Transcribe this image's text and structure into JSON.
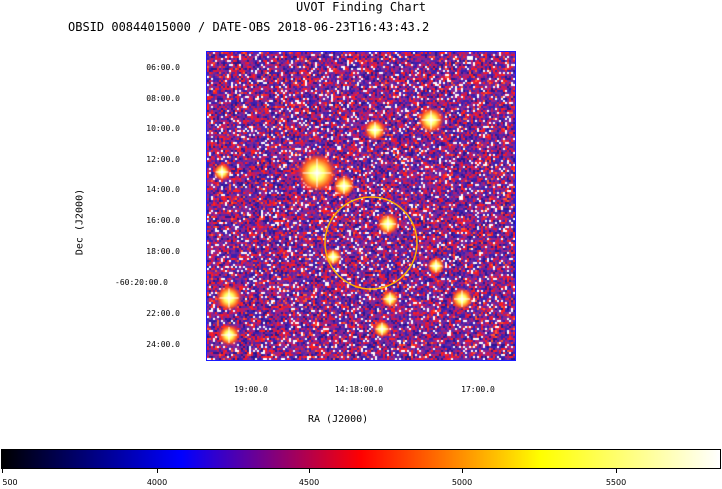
{
  "chart_data": {
    "type": "heatmap",
    "title": "UVOT Finding Chart",
    "subtitle": "OBSID 00844015000 / DATE-OBS 2018-06-23T16:43:43.2",
    "xlabel": "RA (J2000)",
    "ylabel": "Dec (J2000)",
    "x_ticks": [
      "19:00.0",
      "14:18:00.0",
      "17:00.0"
    ],
    "y_ticks": [
      "06:00.0",
      "08:00.0",
      "10:00.0",
      "12:00.0",
      "14:00.0",
      "16:00.0",
      "18:00.0",
      "-60:20:00.0",
      "22:00.0",
      "24:00.0"
    ],
    "colorbar": {
      "ticks": [
        "500",
        "4000",
        "4500",
        "5000",
        "5500"
      ],
      "stops": [
        "#000000",
        "#0000ff",
        "#ff0000",
        "#ffff00",
        "#ffffff"
      ]
    },
    "circle_color": "#ffb000",
    "grid": false
  }
}
